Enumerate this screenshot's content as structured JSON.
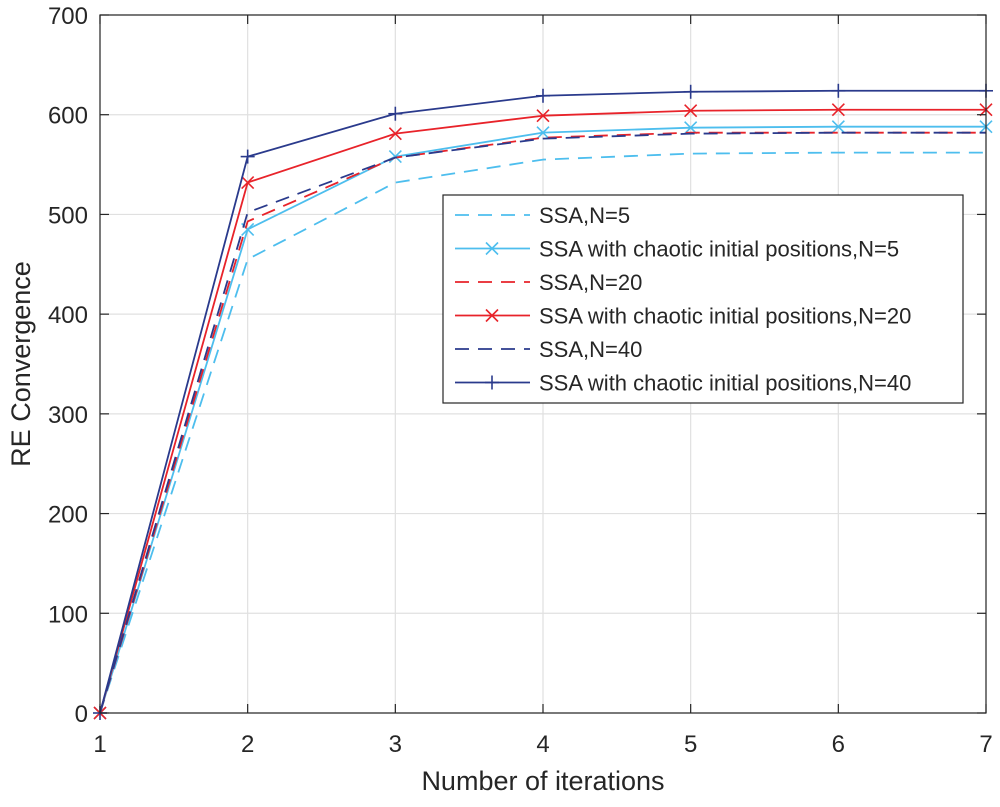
{
  "chart_data": {
    "type": "line",
    "title": "",
    "xlabel": "Number of iterations",
    "ylabel": "RE Convergence",
    "x": [
      1,
      2,
      3,
      4,
      5,
      6,
      7
    ],
    "xlim": [
      1,
      7
    ],
    "ylim": [
      0,
      700
    ],
    "xticks": [
      1,
      2,
      3,
      4,
      5,
      6,
      7
    ],
    "yticks": [
      0,
      100,
      200,
      300,
      400,
      500,
      600,
      700
    ],
    "grid": true,
    "legend_position": "center-right",
    "series": [
      {
        "name": "SSA,N=5",
        "color": "#4dbeee",
        "style": "dashed",
        "marker": "none",
        "values": [
          0,
          455,
          532,
          555,
          561,
          562,
          562
        ]
      },
      {
        "name": "SSA with chaotic initial positions,N=5",
        "color": "#4dbeee",
        "style": "solid",
        "marker": "x",
        "values": [
          0,
          485,
          558,
          582,
          587,
          588,
          588
        ]
      },
      {
        "name": "SSA,N=20",
        "color": "#e8232a",
        "style": "dashed",
        "marker": "none",
        "values": [
          0,
          493,
          557,
          577,
          582,
          582,
          582
        ]
      },
      {
        "name": "SSA with chaotic initial positions,N=20",
        "color": "#e8232a",
        "style": "solid",
        "marker": "x",
        "values": [
          0,
          532,
          581,
          599,
          604,
          605,
          605
        ]
      },
      {
        "name": "SSA,N=40",
        "color": "#2a3a8c",
        "style": "dashed",
        "marker": "none",
        "values": [
          0,
          502,
          557,
          576,
          581,
          582,
          582
        ]
      },
      {
        "name": "SSA with chaotic initial positions,N=40",
        "color": "#2a3a8c",
        "style": "solid",
        "marker": "+",
        "values": [
          0,
          558,
          601,
          619,
          623,
          624,
          624
        ]
      }
    ]
  }
}
